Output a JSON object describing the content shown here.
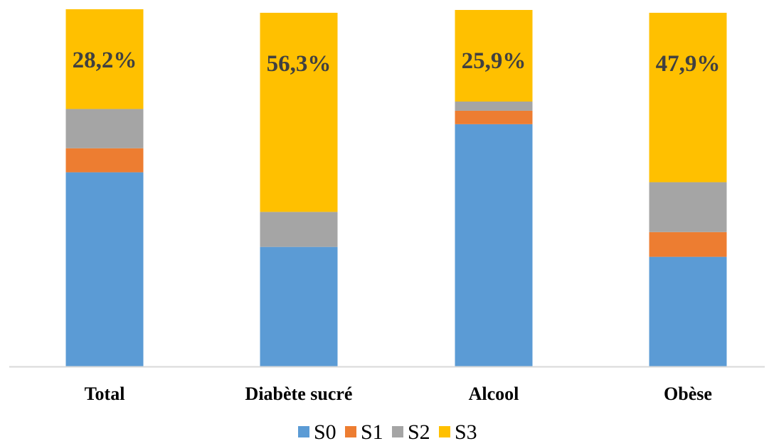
{
  "chart_data": {
    "type": "bar",
    "stacked": true,
    "normalized_percent": true,
    "categories": [
      "Total",
      "Diabète sucré",
      "Alcool",
      "Obèse"
    ],
    "series": [
      {
        "name": "S0",
        "values": [
          54.9,
          33.8,
          68.5,
          31.0
        ],
        "color": "#5B9BD5"
      },
      {
        "name": "S1",
        "values": [
          6.8,
          0.0,
          3.8,
          7.0
        ],
        "color": "#ED7D31"
      },
      {
        "name": "S2",
        "values": [
          11.1,
          9.9,
          2.6,
          14.1
        ],
        "color": "#A5A5A5"
      },
      {
        "name": "S3",
        "values": [
          28.2,
          56.3,
          25.9,
          47.9
        ],
        "color": "#FFC000"
      }
    ],
    "data_labels": [
      {
        "series": "S3",
        "category": "Total",
        "text": "28,2%"
      },
      {
        "series": "S3",
        "category": "Diabète sucré",
        "text": "56,3%"
      },
      {
        "series": "S3",
        "category": "Alcool",
        "text": "25,9%"
      },
      {
        "series": "S3",
        "category": "Obèse",
        "text": "47,9%"
      }
    ],
    "ylim": [
      0,
      100
    ],
    "title": "",
    "xlabel": "",
    "ylabel": "",
    "grid": false,
    "legend_position": "bottom",
    "axis_color": "#D9D9D9"
  }
}
